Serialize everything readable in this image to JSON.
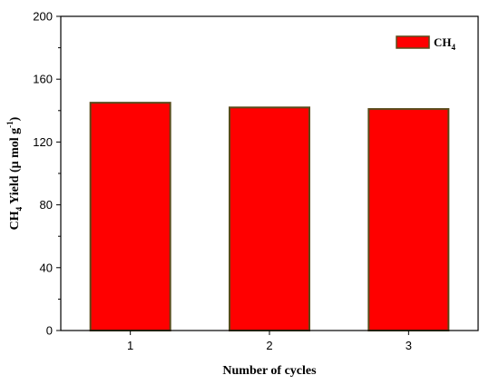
{
  "chart_data": {
    "type": "bar",
    "categories": [
      "1",
      "2",
      "3"
    ],
    "series": [
      {
        "name": "CH4",
        "values": [
          145,
          142,
          141
        ],
        "color": "#ff0000",
        "edge_color": "#5a4a1a"
      }
    ],
    "xlabel": "Number of  cycles",
    "ylabel_main": "CH",
    "ylabel_sub": "4",
    "ylabel_rest": " Yield (μ mol g",
    "ylabel_sup": "-1",
    "ylabel_close": ")",
    "legend_main": "CH",
    "legend_sub": "4",
    "ylim": [
      0,
      200
    ],
    "yticks": [
      0,
      40,
      80,
      120,
      160,
      200
    ],
    "grid": false,
    "legend_position": "top-right"
  }
}
